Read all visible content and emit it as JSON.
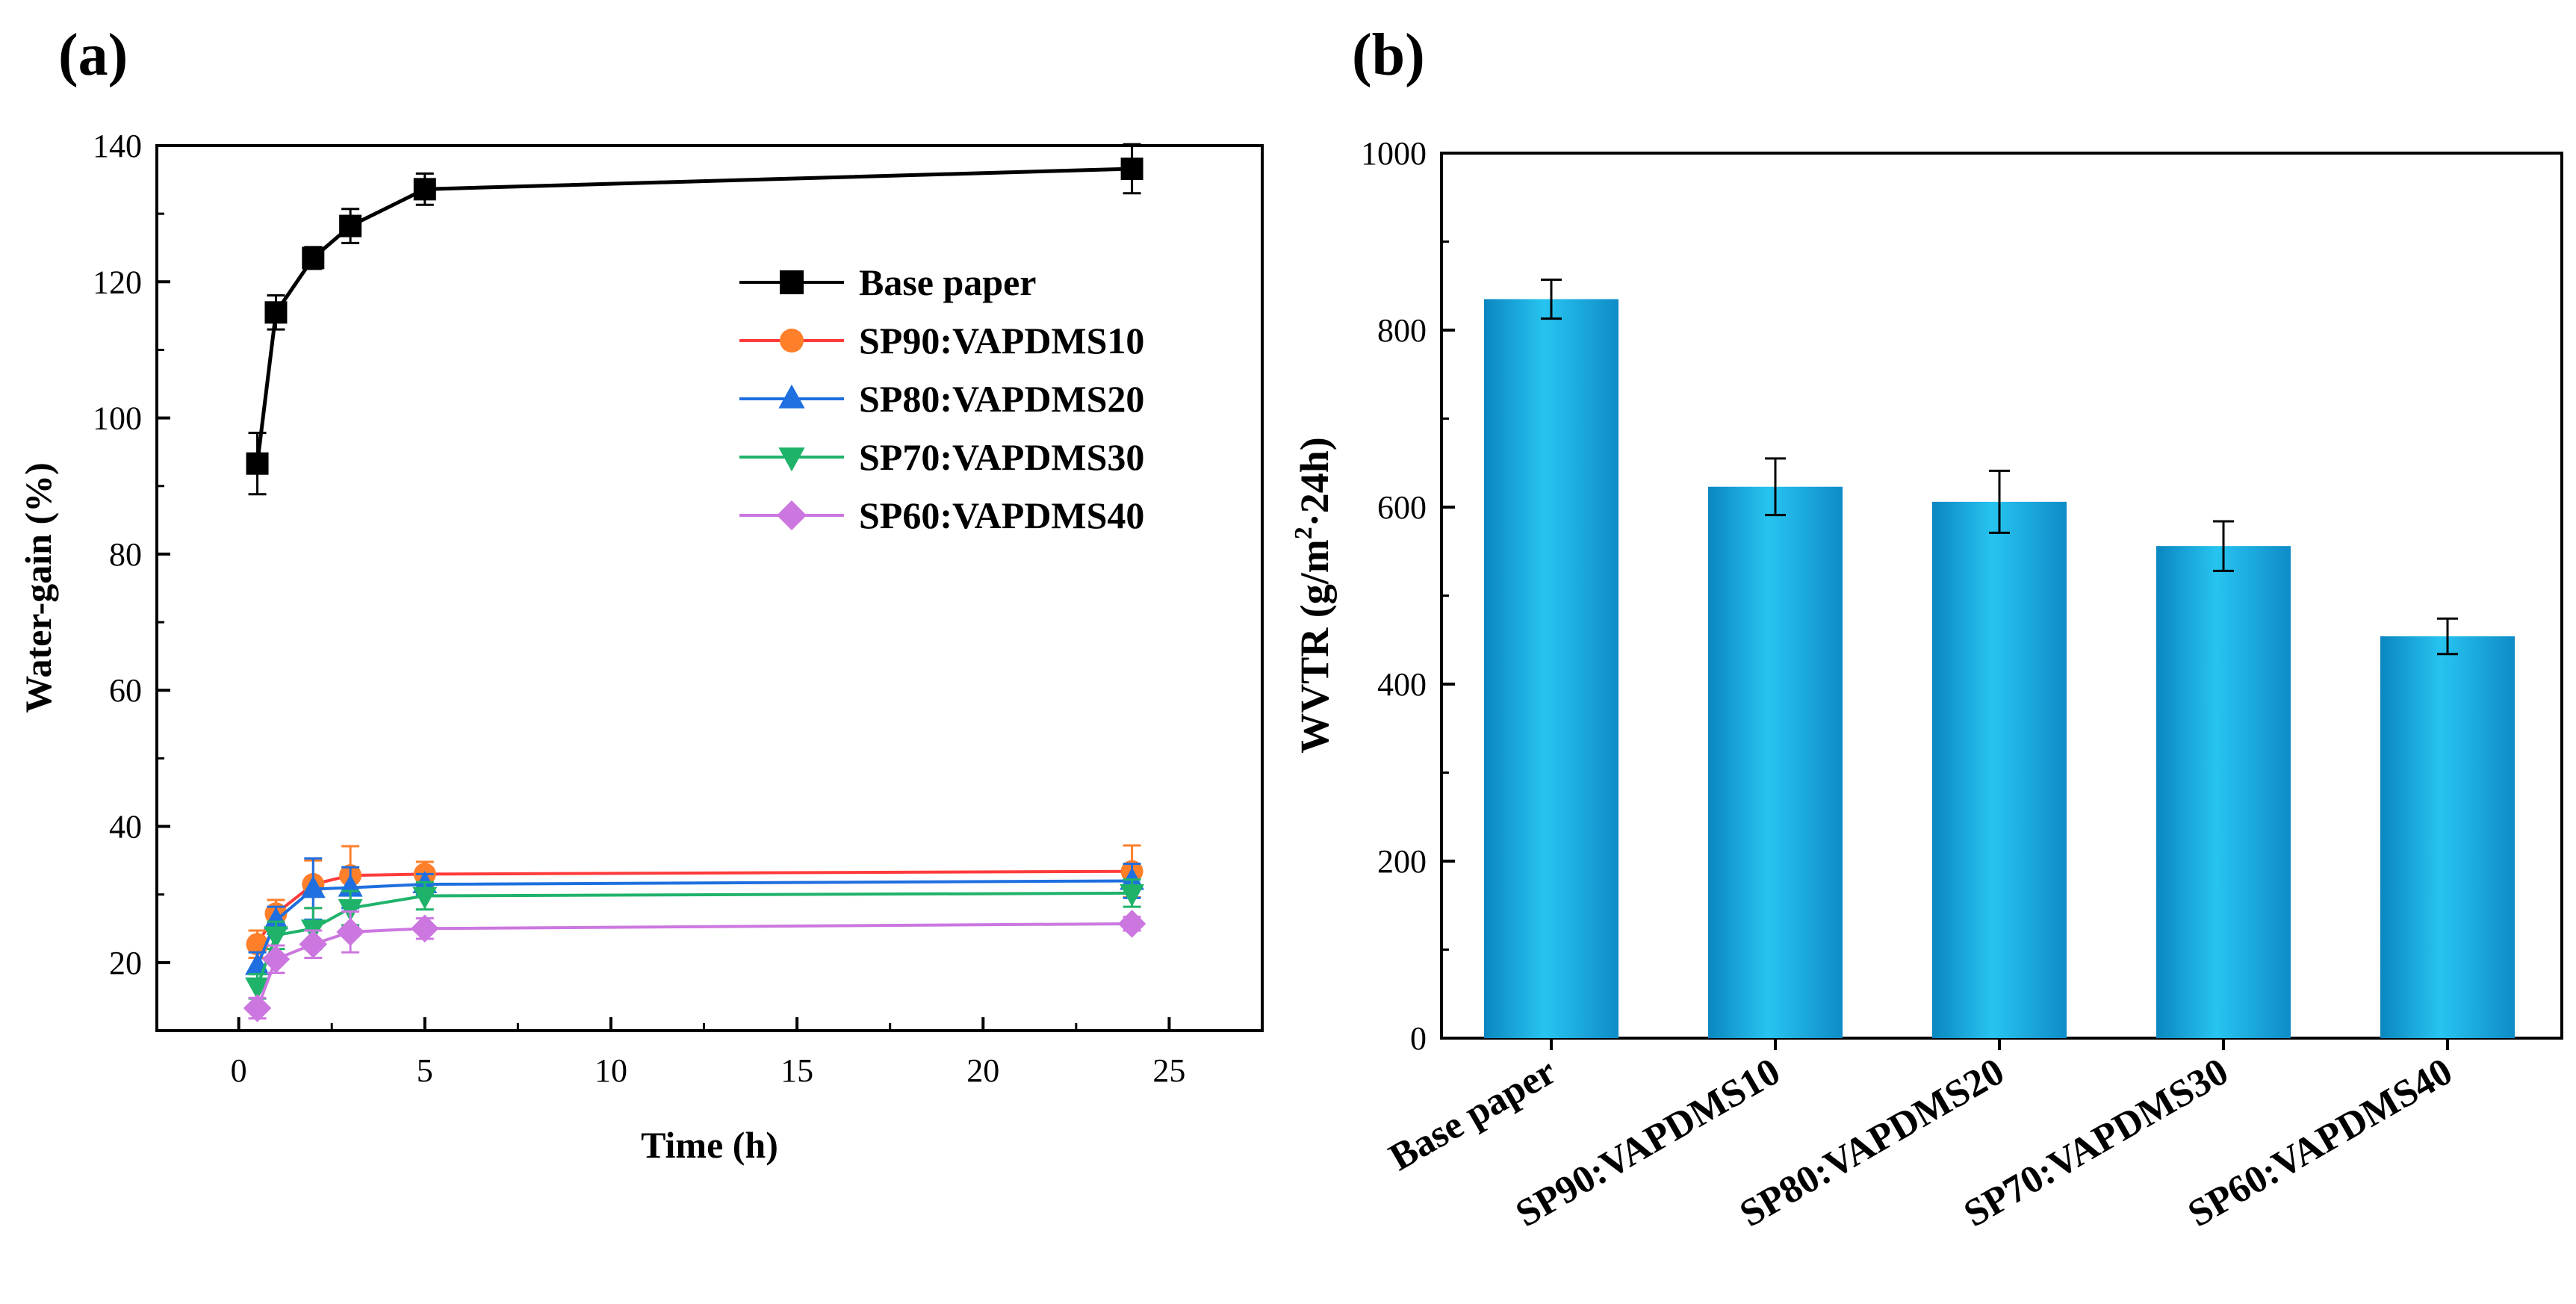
{
  "chart_data": [
    {
      "panel": "(a)",
      "type": "line",
      "xlabel": "Time (h)",
      "ylabel": "Water-gain (%)",
      "xlim": [
        -2.2,
        27.5
      ],
      "ylim": [
        10,
        140
      ],
      "xticks": [
        0,
        5,
        10,
        15,
        20,
        25
      ],
      "yticks": [
        20,
        40,
        60,
        80,
        100,
        120,
        140
      ],
      "legend_position": "upper-right",
      "series": [
        {
          "name": "Base paper",
          "color": "#000000",
          "marker": "square",
          "x": [
            0.5,
            1,
            2,
            3,
            5,
            24
          ],
          "y": [
            93.3,
            115.5,
            123.5,
            128.2,
            133.6,
            136.6
          ],
          "err": [
            4.5,
            2.5,
            1.6,
            2.5,
            2.3,
            3.6
          ]
        },
        {
          "name": "SP90:VAPDMS10",
          "color": "#ff7f2a",
          "line_color": "#ff3b3b",
          "marker": "circle",
          "x": [
            0.5,
            1,
            2,
            3,
            5,
            24
          ],
          "y": [
            22.7,
            27.2,
            31.5,
            32.8,
            33.0,
            33.4
          ],
          "err": [
            2.0,
            2.0,
            3.5,
            4.3,
            1.8,
            3.8
          ]
        },
        {
          "name": "SP80:VAPDMS20",
          "color": "#1f6fe0",
          "marker": "triangle-up",
          "x": [
            0.5,
            1,
            2,
            3,
            5,
            24
          ],
          "y": [
            19.5,
            26.2,
            30.8,
            31.0,
            31.5,
            32.0
          ],
          "err": [
            2.0,
            2.0,
            4.5,
            3.0,
            1.5,
            2.5
          ]
        },
        {
          "name": "SP70:VAPDMS30",
          "color": "#1fb36a",
          "marker": "triangle-down",
          "x": [
            0.5,
            1,
            2,
            3,
            5,
            24
          ],
          "y": [
            16.5,
            24.0,
            25.0,
            28.0,
            29.8,
            30.2
          ],
          "err": [
            1.8,
            2.0,
            3.0,
            2.5,
            2.0,
            2.0
          ]
        },
        {
          "name": "SP60:VAPDMS40",
          "color": "#cc77e0",
          "marker": "diamond",
          "x": [
            0.5,
            1,
            2,
            3,
            5,
            24
          ],
          "y": [
            13.3,
            20.5,
            22.7,
            24.5,
            25.0,
            25.7
          ],
          "err": [
            1.5,
            2.0,
            2.0,
            3.0,
            1.5,
            1.0
          ]
        }
      ]
    },
    {
      "panel": "(b)",
      "type": "bar",
      "ylabel_main": "WVTR (g/m",
      "ylabel_sup": "2",
      "ylabel_tail": "·24h)",
      "ylim": [
        0,
        1000
      ],
      "yticks": [
        0,
        200,
        400,
        600,
        800,
        1000
      ],
      "bar_color": "#1aa6d8",
      "categories": [
        "Base paper",
        "SP90:VAPDMS10",
        "SP80:VAPDMS20",
        "SP70:VAPDMS30",
        "SP60:VAPDMS40"
      ],
      "values": [
        835,
        623,
        606,
        556,
        454
      ],
      "errors": [
        22,
        32,
        35,
        28,
        20
      ]
    }
  ]
}
